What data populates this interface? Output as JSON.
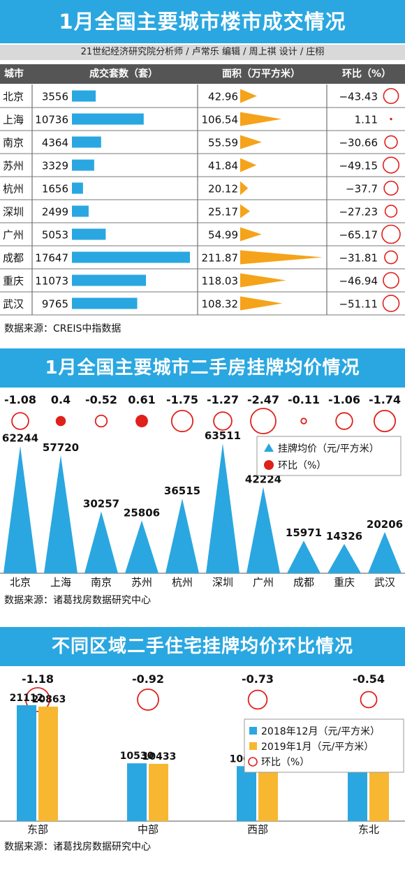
{
  "section1": {
    "title": "1月全国主要城市楼市成交情况",
    "credit": "21世纪经济研究院分析师 / 卢常乐    编辑 / 周上祺    设计 / 庄栩",
    "headers": {
      "city": "城市",
      "units": "成交套数（套）",
      "area": "面积（万平方米）",
      "mom": "环比（%）"
    },
    "source": "数据来源：CREIS中指数据"
  },
  "section2": {
    "title": "1月全国主要城市二手房挂牌均价情况",
    "source": "数据来源：诸葛找房数据研究中心"
  },
  "section3": {
    "title": "不同区域二手住宅挂牌均价环比情况",
    "source": "数据来源：诸葛找房数据研究中心"
  },
  "colors": {
    "blue": "#2aa7e0",
    "orange": "#f5a31a",
    "red": "#e0201b",
    "bar_orange": "#f7b731"
  },
  "chart_data": [
    {
      "type": "table",
      "columns": [
        "城市",
        "成交套数（套）",
        "面积（万平方米）",
        "环比（%）"
      ],
      "categories": [
        "北京",
        "上海",
        "南京",
        "苏州",
        "杭州",
        "深圳",
        "广州",
        "成都",
        "重庆",
        "武汉"
      ],
      "series": [
        {
          "name": "成交套数（套）",
          "values": [
            3556,
            10736,
            4364,
            3329,
            1656,
            2499,
            5053,
            17647,
            11073,
            9765
          ]
        },
        {
          "name": "面积（万平方米）",
          "values": [
            42.96,
            106.54,
            55.59,
            41.84,
            20.12,
            25.17,
            54.99,
            211.87,
            118.03,
            108.32
          ]
        },
        {
          "name": "环比（%）",
          "values": [
            -43.43,
            1.11,
            -30.66,
            -49.15,
            -37.7,
            -27.23,
            -65.17,
            -31.81,
            -46.94,
            -51.11
          ]
        }
      ],
      "labels": {
        "units": [
          "3556",
          "10736",
          "4364",
          "3329",
          "1656",
          "2499",
          "5053",
          "17647",
          "11073",
          "9765"
        ],
        "area": [
          "42.96",
          "106.54",
          "55.59",
          "41.84",
          "20.12",
          "25.17",
          "54.99",
          "211.87",
          "118.03",
          "108.32"
        ],
        "mom": [
          "−43.43",
          "1.11",
          "−30.66",
          "−49.15",
          "−37.7",
          "−27.23",
          "−65.17",
          "−31.81",
          "−46.94",
          "−51.11"
        ]
      }
    },
    {
      "type": "bar",
      "categories": [
        "北京",
        "上海",
        "南京",
        "苏州",
        "杭州",
        "深圳",
        "广州",
        "成都",
        "重庆",
        "武汉"
      ],
      "series": [
        {
          "name": "挂牌均价（元/平方米）",
          "values": [
            62244,
            57720,
            30257,
            25806,
            36515,
            63511,
            42224,
            15971,
            14326,
            20206
          ]
        },
        {
          "name": "环比（%）",
          "values": [
            -1.08,
            0.4,
            -0.52,
            0.61,
            -1.75,
            -1.27,
            -2.47,
            -0.11,
            -1.06,
            -1.74
          ]
        }
      ],
      "value_labels": [
        "62244",
        "57720",
        "30257",
        "25806",
        "36515",
        "63511",
        "42224",
        "15971",
        "14326",
        "20206"
      ],
      "mom_labels": [
        "-1.08",
        "0.4",
        "-0.52",
        "0.61",
        "-1.75",
        "-1.27",
        "-2.47",
        "-0.11",
        "-1.06",
        "-1.74"
      ],
      "legend": [
        "挂牌均价（元/平方米）",
        "环比（%）"
      ],
      "legend_position": "top-right",
      "grid": false
    },
    {
      "type": "bar",
      "categories": [
        "东部",
        "中部",
        "西部",
        "东北"
      ],
      "series": [
        {
          "name": "2018年12月（元/平方米）",
          "values": [
            21112,
            10530,
            10015,
            9397
          ]
        },
        {
          "name": "2019年1月（元/平方米）",
          "values": [
            20863,
            10433,
            9942,
            9346
          ]
        },
        {
          "name": "环比（%）",
          "values": [
            -1.18,
            -0.92,
            -0.73,
            -0.54
          ]
        }
      ],
      "value_labels": [
        [
          "21112",
          "10530",
          "10015",
          "9397"
        ],
        [
          "20863",
          "10433",
          "9942",
          "9346"
        ]
      ],
      "mom_labels": [
        "-1.18",
        "-0.92",
        "-0.73",
        "-0.54"
      ],
      "legend": [
        "2018年12月（元/平方米）",
        "2019年1月（元/平方米）",
        "环比（%）"
      ],
      "legend_position": "top-right",
      "grid": false
    }
  ]
}
